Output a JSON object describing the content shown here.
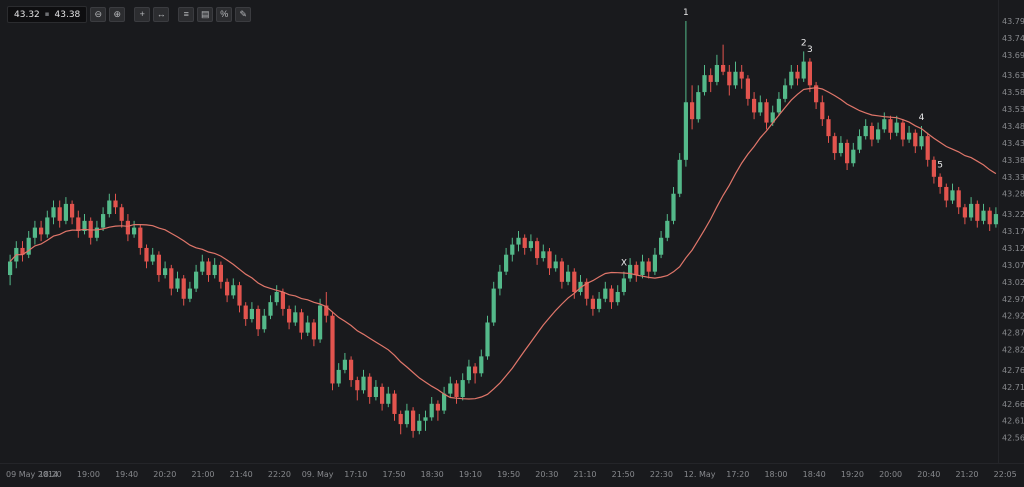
{
  "toolbar": {
    "price_left": "43.32",
    "separator_glyph": "▪",
    "price_right": "43.38",
    "buttons": [
      {
        "name": "zoom-out",
        "glyph": "⊖"
      },
      {
        "name": "zoom-in",
        "glyph": "⊕"
      },
      {
        "name": "crosshair",
        "glyph": "+"
      },
      {
        "name": "pan",
        "glyph": "↔"
      },
      {
        "name": "indicators",
        "glyph": "≡"
      },
      {
        "name": "chart-type",
        "glyph": "▤"
      },
      {
        "name": "scale-percent",
        "glyph": "%"
      },
      {
        "name": "draw",
        "glyph": "✎"
      }
    ]
  },
  "chart_data": {
    "type": "candlestick",
    "title": "",
    "colors": {
      "up": "#54b98a",
      "down": "#e2544e",
      "ma_line": "#e0766a",
      "background": "#191a1d",
      "axis_text": "#87898d",
      "annotation": "#e9e9ea",
      "axis_border": "#242529"
    },
    "ma": {
      "period": 20,
      "name": "moving-average"
    },
    "y_axis": {
      "min": 42.5,
      "max": 43.84,
      "ticks": [
        43.79,
        43.74,
        43.69,
        43.63,
        43.58,
        43.53,
        43.48,
        43.43,
        43.38,
        43.33,
        43.28,
        43.22,
        43.17,
        43.12,
        43.07,
        43.02,
        42.97,
        42.92,
        42.87,
        42.82,
        42.76,
        42.71,
        42.66,
        42.61,
        42.56
      ]
    },
    "x_axis": {
      "labels": [
        "09 May 2014",
        "18:20",
        "19:00",
        "19:40",
        "20:20",
        "21:00",
        "21:40",
        "22:20",
        "09. May",
        "17:10",
        "17:50",
        "18:30",
        "19:10",
        "19:50",
        "20:30",
        "21:10",
        "21:50",
        "22:30",
        "12. May",
        "17:20",
        "18:00",
        "18:40",
        "19:20",
        "20:00",
        "20:40",
        "21:20",
        "22:05"
      ]
    },
    "annotations": [
      {
        "text": "1",
        "candle_index": 109
      },
      {
        "text": "2",
        "candle_index": 128
      },
      {
        "text": "3",
        "candle_index": 129
      },
      {
        "text": "4",
        "candle_index": 147
      },
      {
        "text": "5",
        "candle_index": 150
      },
      {
        "text": "X",
        "candle_index": 99
      }
    ],
    "candles": [
      [
        43.04,
        43.1,
        43.01,
        43.08
      ],
      [
        43.08,
        43.14,
        43.06,
        43.12
      ],
      [
        43.12,
        43.14,
        43.08,
        43.1
      ],
      [
        43.1,
        43.17,
        43.09,
        43.15
      ],
      [
        43.15,
        43.2,
        43.13,
        43.18
      ],
      [
        43.18,
        43.2,
        43.14,
        43.16
      ],
      [
        43.16,
        43.23,
        43.15,
        43.21
      ],
      [
        43.21,
        43.26,
        43.19,
        43.24
      ],
      [
        43.24,
        43.26,
        43.18,
        43.2
      ],
      [
        43.2,
        43.27,
        43.19,
        43.25
      ],
      [
        43.25,
        43.26,
        43.19,
        43.21
      ],
      [
        43.21,
        43.23,
        43.15,
        43.17
      ],
      [
        43.17,
        43.22,
        43.16,
        43.2
      ],
      [
        43.2,
        43.21,
        43.13,
        43.15
      ],
      [
        43.15,
        43.2,
        43.14,
        43.18
      ],
      [
        43.18,
        43.24,
        43.17,
        43.22
      ],
      [
        43.22,
        43.28,
        43.21,
        43.26
      ],
      [
        43.26,
        43.28,
        43.22,
        43.24
      ],
      [
        43.24,
        43.25,
        43.18,
        43.2
      ],
      [
        43.2,
        43.22,
        43.14,
        43.16
      ],
      [
        43.16,
        43.2,
        43.15,
        43.18
      ],
      [
        43.18,
        43.19,
        43.1,
        43.12
      ],
      [
        43.12,
        43.13,
        43.06,
        43.08
      ],
      [
        43.08,
        43.12,
        43.07,
        43.1
      ],
      [
        43.1,
        43.11,
        43.02,
        43.04
      ],
      [
        43.04,
        43.08,
        43.03,
        43.06
      ],
      [
        43.06,
        43.07,
        42.98,
        43.0
      ],
      [
        43.0,
        43.05,
        42.99,
        43.03
      ],
      [
        43.03,
        43.04,
        42.95,
        42.97
      ],
      [
        42.97,
        43.02,
        42.96,
        43.0
      ],
      [
        43.0,
        43.07,
        42.99,
        43.05
      ],
      [
        43.05,
        43.1,
        43.04,
        43.08
      ],
      [
        43.08,
        43.09,
        43.02,
        43.04
      ],
      [
        43.04,
        43.09,
        43.03,
        43.07
      ],
      [
        43.07,
        43.08,
        43.0,
        43.02
      ],
      [
        43.02,
        43.03,
        42.96,
        42.98
      ],
      [
        42.98,
        43.03,
        42.97,
        43.01
      ],
      [
        43.01,
        43.02,
        42.93,
        42.95
      ],
      [
        42.95,
        42.96,
        42.89,
        42.91
      ],
      [
        42.91,
        42.96,
        42.9,
        42.94
      ],
      [
        42.94,
        42.95,
        42.86,
        42.88
      ],
      [
        42.88,
        42.94,
        42.87,
        42.92
      ],
      [
        42.92,
        42.98,
        42.91,
        42.96
      ],
      [
        42.96,
        43.01,
        42.95,
        42.99
      ],
      [
        42.99,
        43.0,
        42.92,
        42.94
      ],
      [
        42.94,
        42.95,
        42.88,
        42.9
      ],
      [
        42.9,
        42.95,
        42.89,
        42.93
      ],
      [
        42.93,
        42.94,
        42.85,
        42.87
      ],
      [
        42.87,
        42.92,
        42.86,
        42.9
      ],
      [
        42.9,
        42.91,
        42.83,
        42.85
      ],
      [
        42.85,
        42.97,
        42.84,
        42.95
      ],
      [
        42.95,
        42.99,
        42.9,
        42.92
      ],
      [
        42.92,
        42.93,
        42.7,
        42.72
      ],
      [
        42.72,
        42.78,
        42.71,
        42.76
      ],
      [
        42.76,
        42.81,
        42.75,
        42.79
      ],
      [
        42.79,
        42.8,
        42.71,
        42.73
      ],
      [
        42.73,
        42.74,
        42.67,
        42.7
      ],
      [
        42.7,
        42.76,
        42.69,
        42.74
      ],
      [
        42.74,
        42.75,
        42.66,
        42.68
      ],
      [
        42.68,
        42.73,
        42.67,
        42.71
      ],
      [
        42.71,
        42.72,
        42.64,
        42.66
      ],
      [
        42.66,
        42.71,
        42.65,
        42.69
      ],
      [
        42.69,
        42.7,
        42.61,
        42.63
      ],
      [
        42.63,
        42.64,
        42.57,
        42.6
      ],
      [
        42.6,
        42.66,
        42.59,
        42.64
      ],
      [
        42.64,
        42.65,
        42.56,
        42.58
      ],
      [
        42.58,
        42.63,
        42.57,
        42.61
      ],
      [
        42.61,
        42.64,
        42.58,
        42.62
      ],
      [
        42.62,
        42.68,
        42.61,
        42.66
      ],
      [
        42.66,
        42.67,
        42.61,
        42.64
      ],
      [
        42.64,
        42.71,
        42.63,
        42.69
      ],
      [
        42.69,
        42.74,
        42.68,
        42.72
      ],
      [
        42.72,
        42.73,
        42.66,
        42.68
      ],
      [
        42.68,
        42.75,
        42.67,
        42.73
      ],
      [
        42.73,
        42.79,
        42.72,
        42.77
      ],
      [
        42.77,
        42.78,
        42.72,
        42.75
      ],
      [
        42.75,
        42.82,
        42.74,
        42.8
      ],
      [
        42.8,
        42.92,
        42.79,
        42.9
      ],
      [
        42.9,
        43.02,
        42.89,
        43.0
      ],
      [
        43.0,
        43.07,
        42.98,
        43.05
      ],
      [
        43.05,
        43.12,
        43.04,
        43.1
      ],
      [
        43.1,
        43.15,
        43.08,
        43.13
      ],
      [
        43.13,
        43.17,
        43.11,
        43.15
      ],
      [
        43.15,
        43.16,
        43.1,
        43.12
      ],
      [
        43.12,
        43.16,
        43.11,
        43.14
      ],
      [
        43.14,
        43.15,
        43.07,
        43.09
      ],
      [
        43.09,
        43.13,
        43.08,
        43.11
      ],
      [
        43.11,
        43.12,
        43.04,
        43.06
      ],
      [
        43.06,
        43.1,
        43.05,
        43.08
      ],
      [
        43.08,
        43.09,
        43.0,
        43.02
      ],
      [
        43.02,
        43.07,
        43.01,
        43.05
      ],
      [
        43.05,
        43.06,
        42.97,
        42.99
      ],
      [
        42.99,
        43.04,
        42.98,
        43.02
      ],
      [
        43.02,
        43.03,
        42.95,
        42.97
      ],
      [
        42.97,
        42.98,
        42.92,
        42.94
      ],
      [
        42.94,
        42.99,
        42.93,
        42.97
      ],
      [
        42.97,
        43.02,
        42.96,
        43.0
      ],
      [
        43.0,
        43.01,
        42.94,
        42.96
      ],
      [
        42.96,
        43.01,
        42.95,
        42.99
      ],
      [
        42.99,
        43.05,
        42.98,
        43.03
      ],
      [
        43.03,
        43.09,
        43.02,
        43.07
      ],
      [
        43.07,
        43.08,
        43.02,
        43.04
      ],
      [
        43.04,
        43.1,
        43.03,
        43.08
      ],
      [
        43.08,
        43.09,
        43.03,
        43.05
      ],
      [
        43.05,
        43.12,
        43.04,
        43.1
      ],
      [
        43.1,
        43.17,
        43.09,
        43.15
      ],
      [
        43.15,
        43.22,
        43.14,
        43.2
      ],
      [
        43.2,
        43.3,
        43.19,
        43.28
      ],
      [
        43.28,
        43.4,
        43.27,
        43.38
      ],
      [
        43.38,
        43.79,
        43.36,
        43.55
      ],
      [
        43.55,
        43.6,
        43.47,
        43.5
      ],
      [
        43.5,
        43.6,
        43.49,
        43.58
      ],
      [
        43.58,
        43.66,
        43.57,
        43.63
      ],
      [
        43.63,
        43.65,
        43.58,
        43.61
      ],
      [
        43.61,
        43.69,
        43.6,
        43.66
      ],
      [
        43.66,
        43.72,
        43.63,
        43.64
      ],
      [
        43.64,
        43.66,
        43.57,
        43.6
      ],
      [
        43.6,
        43.67,
        43.59,
        43.64
      ],
      [
        43.64,
        43.66,
        43.59,
        43.62
      ],
      [
        43.62,
        43.63,
        43.54,
        43.56
      ],
      [
        43.56,
        43.58,
        43.5,
        43.52
      ],
      [
        43.52,
        43.57,
        43.51,
        43.55
      ],
      [
        43.55,
        43.56,
        43.47,
        43.49
      ],
      [
        43.49,
        43.54,
        43.48,
        43.52
      ],
      [
        43.52,
        43.58,
        43.51,
        43.56
      ],
      [
        43.56,
        43.62,
        43.55,
        43.6
      ],
      [
        43.6,
        43.66,
        43.59,
        43.64
      ],
      [
        43.64,
        43.66,
        43.6,
        43.62
      ],
      [
        43.62,
        43.7,
        43.61,
        43.67
      ],
      [
        43.67,
        43.68,
        43.58,
        43.6
      ],
      [
        43.6,
        43.61,
        43.53,
        43.55
      ],
      [
        43.55,
        43.57,
        43.48,
        43.5
      ],
      [
        43.5,
        43.51,
        43.43,
        43.45
      ],
      [
        43.45,
        43.46,
        43.38,
        43.4
      ],
      [
        43.4,
        43.45,
        43.39,
        43.43
      ],
      [
        43.43,
        43.44,
        43.35,
        43.37
      ],
      [
        43.37,
        43.43,
        43.36,
        43.41
      ],
      [
        43.41,
        43.47,
        43.4,
        43.45
      ],
      [
        43.45,
        43.5,
        43.44,
        43.48
      ],
      [
        43.48,
        43.49,
        43.42,
        43.44
      ],
      [
        43.44,
        43.49,
        43.43,
        43.47
      ],
      [
        43.47,
        43.52,
        43.46,
        43.5
      ],
      [
        43.5,
        43.51,
        43.44,
        43.46
      ],
      [
        43.46,
        43.51,
        43.45,
        43.49
      ],
      [
        43.49,
        43.5,
        43.42,
        43.44
      ],
      [
        43.44,
        43.48,
        43.43,
        43.46
      ],
      [
        43.46,
        43.47,
        43.4,
        43.42
      ],
      [
        43.42,
        43.48,
        43.41,
        43.45
      ],
      [
        43.45,
        43.46,
        43.36,
        43.38
      ],
      [
        43.38,
        43.39,
        43.31,
        43.33
      ],
      [
        43.33,
        43.34,
        43.28,
        43.3
      ],
      [
        43.3,
        43.31,
        43.24,
        43.26
      ],
      [
        43.26,
        43.31,
        43.25,
        43.29
      ],
      [
        43.29,
        43.3,
        43.22,
        43.24
      ],
      [
        43.24,
        43.25,
        43.19,
        43.21
      ],
      [
        43.21,
        43.27,
        43.2,
        43.25
      ],
      [
        43.25,
        43.26,
        43.18,
        43.2
      ],
      [
        43.2,
        43.25,
        43.19,
        43.23
      ],
      [
        43.23,
        43.24,
        43.17,
        43.19
      ],
      [
        43.19,
        43.24,
        43.18,
        43.22
      ]
    ]
  }
}
